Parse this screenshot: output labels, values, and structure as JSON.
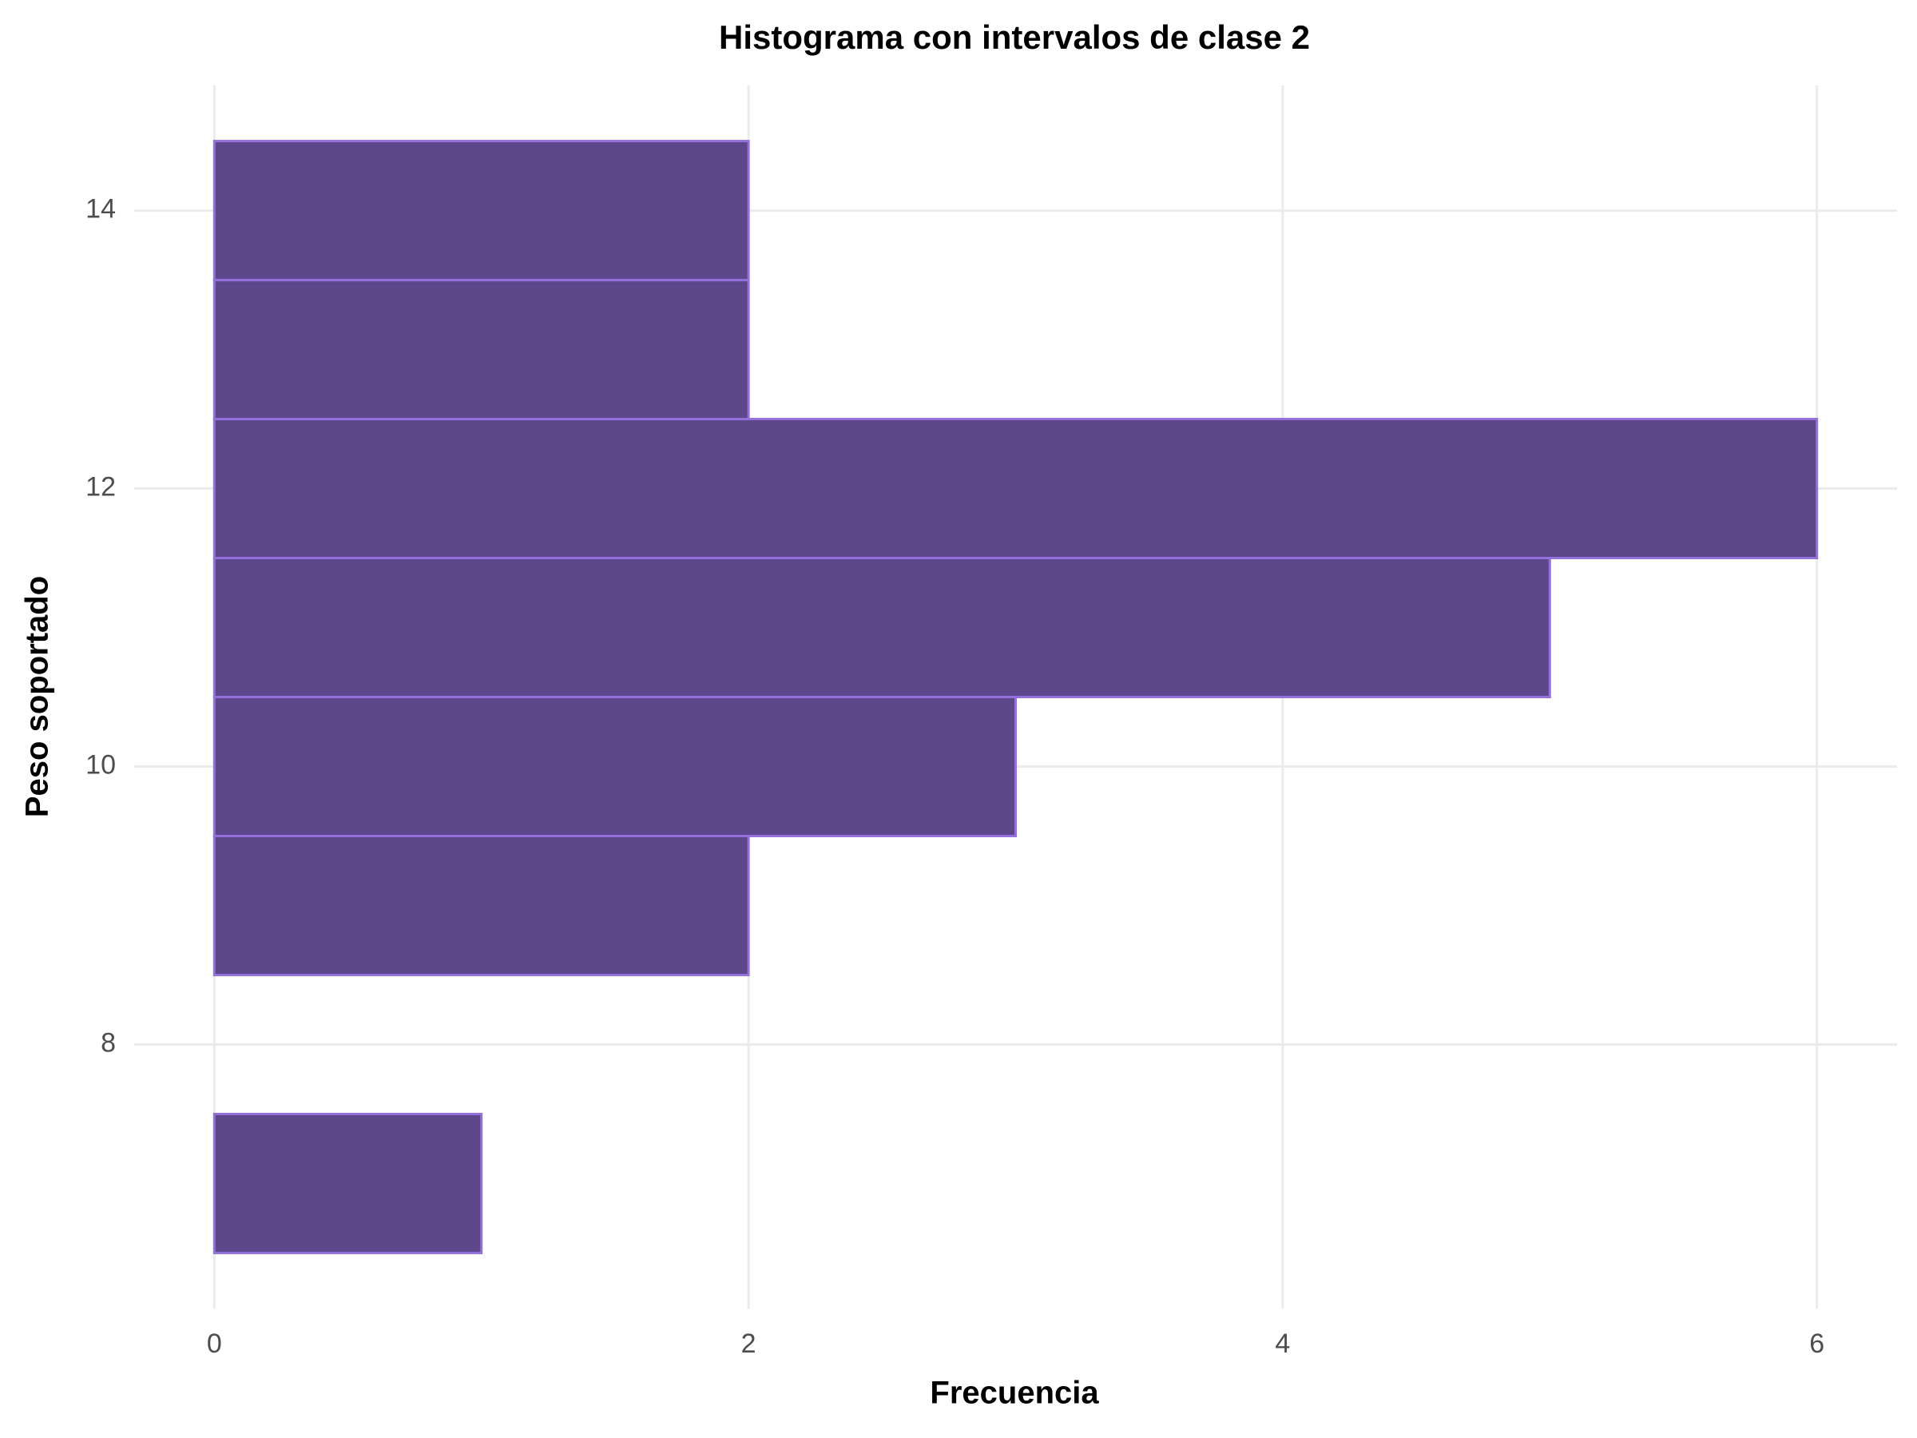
{
  "chart_data": {
    "type": "histogram",
    "orientation": "horizontal",
    "title": "Histograma con intervalos de clase 2",
    "x_label": "Frecuencia",
    "y_label": "Peso soportado",
    "bins": [
      6.5,
      7.5,
      8.5,
      9.5,
      10.5,
      11.5,
      12.5,
      13.5,
      14.5
    ],
    "counts": [
      1,
      0,
      2,
      3,
      5,
      6,
      2,
      2
    ],
    "color": "#5D478B",
    "edge_color": "#9370DB",
    "xlim": [
      -0.3,
      6.3
    ],
    "xticks": [
      0,
      2,
      4,
      6
    ],
    "ylim": [
      6.1,
      14.9
    ],
    "yticks": [
      8,
      10,
      12,
      14
    ],
    "grid": true
  }
}
